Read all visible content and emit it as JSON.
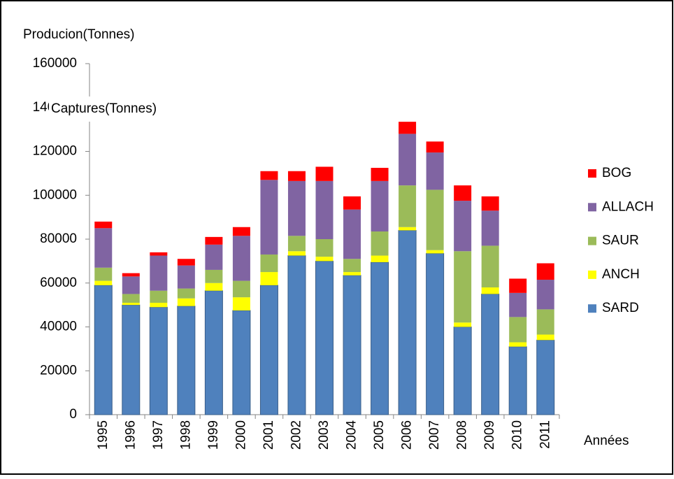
{
  "chart_data": {
    "type": "stacked_bar",
    "title": "Producion(Tonnes)",
    "annotation": "Captures(Tonnes)",
    "x_label": "Années",
    "categories": [
      "1995",
      "1996",
      "1997",
      "1998",
      "1999",
      "2000",
      "2001",
      "2002",
      "2003",
      "2004",
      "2005",
      "2006",
      "2007",
      "2008",
      "2009",
      "2010",
      "2011"
    ],
    "series": [
      {
        "name": "SARD",
        "color": "#4f81bd",
        "values": [
          59000,
          50000,
          49000,
          49500,
          56500,
          47500,
          59000,
          72500,
          70000,
          63500,
          69500,
          84000,
          73500,
          40000,
          55000,
          31000,
          34000
        ]
      },
      {
        "name": "ANCH",
        "color": "#ffff00",
        "values": [
          2000,
          1000,
          2000,
          3500,
          3500,
          6000,
          6000,
          2000,
          2000,
          1500,
          3000,
          1500,
          1500,
          2000,
          3000,
          2000,
          2500
        ]
      },
      {
        "name": "SAUR",
        "color": "#9bbb59",
        "values": [
          6000,
          4000,
          5500,
          4500,
          6000,
          7500,
          8000,
          7000,
          8000,
          6000,
          11000,
          19000,
          27500,
          32500,
          19000,
          11500,
          11500
        ]
      },
      {
        "name": "ALLACH",
        "color": "#8064a2",
        "values": [
          18000,
          8000,
          16000,
          10500,
          11500,
          20500,
          34000,
          25000,
          26500,
          22500,
          23000,
          23500,
          17000,
          23000,
          16000,
          11000,
          13500
        ]
      },
      {
        "name": "BOG",
        "color": "#ff0000",
        "values": [
          3000,
          1500,
          1500,
          3000,
          3500,
          4000,
          4000,
          4500,
          6500,
          6000,
          6000,
          5500,
          5000,
          7000,
          6500,
          6500,
          7500
        ]
      }
    ],
    "ylim": [
      0,
      160000
    ],
    "yticks": [
      0,
      20000,
      40000,
      60000,
      80000,
      100000,
      120000,
      140000,
      160000
    ],
    "grid": false,
    "legend": "right"
  }
}
